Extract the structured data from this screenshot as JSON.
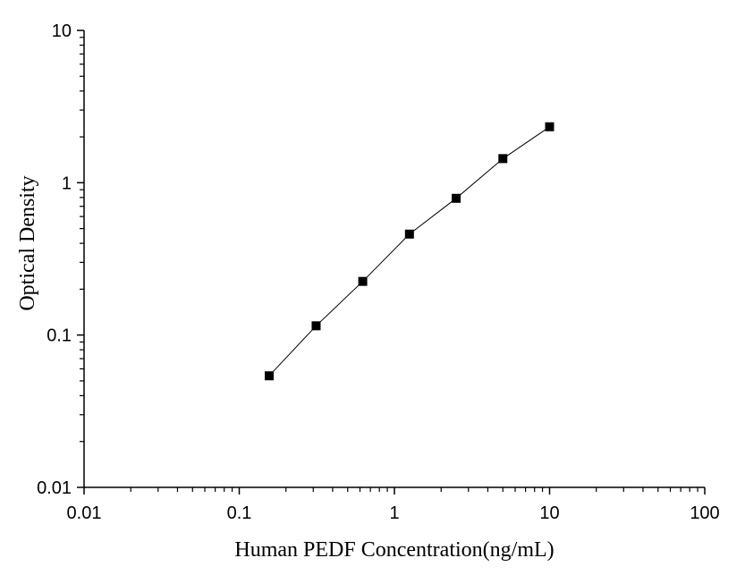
{
  "chart_data": {
    "type": "line",
    "xlabel": "Human PEDF Concentration(ng/mL)",
    "ylabel": "Optical Density",
    "x_scale": "log",
    "y_scale": "log",
    "xlim": [
      0.01,
      100
    ],
    "ylim": [
      0.01,
      10
    ],
    "x_ticks": [
      "0.01",
      "0.1",
      "1",
      "10",
      "100"
    ],
    "y_ticks": [
      "0.01",
      "0.1",
      "1",
      "10"
    ],
    "grid": false,
    "legend": "none",
    "marker": "square",
    "colors": {
      "line": "#000000",
      "marker": "#000000"
    },
    "series": [
      {
        "x": [
          0.156,
          0.313,
          0.625,
          1.25,
          2.5,
          5,
          10
        ],
        "y": [
          0.054,
          0.115,
          0.225,
          0.46,
          0.79,
          1.44,
          2.33
        ]
      }
    ]
  }
}
